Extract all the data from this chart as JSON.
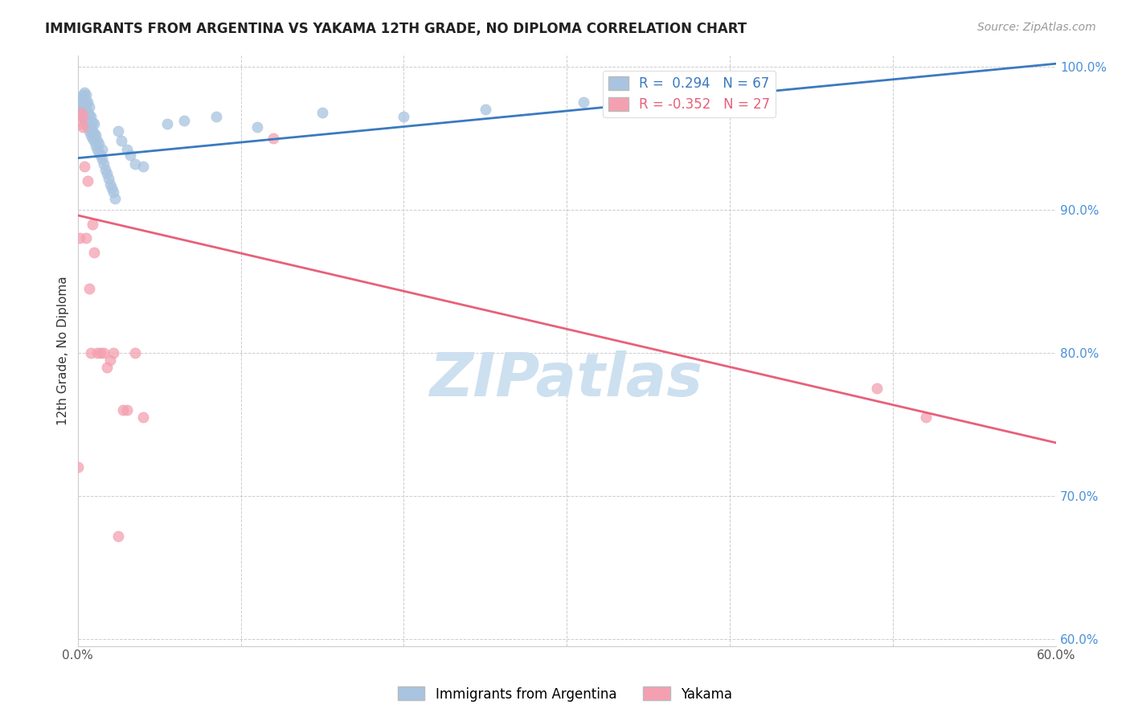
{
  "title": "IMMIGRANTS FROM ARGENTINA VS YAKAMA 12TH GRADE, NO DIPLOMA CORRELATION CHART",
  "source": "Source: ZipAtlas.com",
  "ylabel": "12th Grade, No Diploma",
  "x_min": 0.0,
  "x_max": 0.6,
  "y_min": 0.595,
  "y_max": 1.008,
  "x_ticks": [
    0.0,
    0.1,
    0.2,
    0.3,
    0.4,
    0.5,
    0.6
  ],
  "x_tick_labels": [
    "0.0%",
    "",
    "",
    "",
    "",
    "",
    "60.0%"
  ],
  "y_ticks": [
    0.6,
    0.7,
    0.8,
    0.9,
    1.0
  ],
  "y_tick_labels": [
    "60.0%",
    "70.0%",
    "80.0%",
    "90.0%",
    "100.0%"
  ],
  "blue_R": 0.294,
  "blue_N": 67,
  "pink_R": -0.352,
  "pink_N": 27,
  "blue_color": "#a8c4e0",
  "pink_color": "#f4a0b0",
  "blue_line_color": "#3a7abf",
  "pink_line_color": "#e8607a",
  "watermark": "ZIPatlas",
  "watermark_color": "#cce0f0",
  "legend_label_blue": "Immigrants from Argentina",
  "legend_label_pink": "Yakama",
  "blue_scatter_x": [
    0.001,
    0.001,
    0.002,
    0.002,
    0.002,
    0.003,
    0.003,
    0.003,
    0.003,
    0.004,
    0.004,
    0.004,
    0.004,
    0.004,
    0.005,
    0.005,
    0.005,
    0.005,
    0.005,
    0.006,
    0.006,
    0.006,
    0.006,
    0.007,
    0.007,
    0.007,
    0.007,
    0.008,
    0.008,
    0.008,
    0.009,
    0.009,
    0.009,
    0.01,
    0.01,
    0.01,
    0.011,
    0.011,
    0.012,
    0.012,
    0.013,
    0.013,
    0.014,
    0.015,
    0.015,
    0.016,
    0.017,
    0.018,
    0.019,
    0.02,
    0.021,
    0.022,
    0.023,
    0.025,
    0.027,
    0.03,
    0.032,
    0.035,
    0.04,
    0.055,
    0.065,
    0.085,
    0.11,
    0.15,
    0.2,
    0.25,
    0.31
  ],
  "blue_scatter_y": [
    0.97,
    0.975,
    0.968,
    0.972,
    0.978,
    0.965,
    0.97,
    0.975,
    0.98,
    0.962,
    0.968,
    0.973,
    0.978,
    0.982,
    0.96,
    0.965,
    0.97,
    0.975,
    0.98,
    0.958,
    0.963,
    0.968,
    0.975,
    0.955,
    0.961,
    0.966,
    0.972,
    0.952,
    0.958,
    0.965,
    0.95,
    0.955,
    0.961,
    0.948,
    0.953,
    0.96,
    0.945,
    0.952,
    0.942,
    0.948,
    0.94,
    0.946,
    0.938,
    0.935,
    0.942,
    0.932,
    0.928,
    0.925,
    0.922,
    0.918,
    0.915,
    0.912,
    0.908,
    0.955,
    0.948,
    0.942,
    0.938,
    0.932,
    0.93,
    0.96,
    0.962,
    0.965,
    0.958,
    0.968,
    0.965,
    0.97,
    0.975
  ],
  "pink_scatter_x": [
    0.0,
    0.001,
    0.002,
    0.002,
    0.003,
    0.003,
    0.004,
    0.005,
    0.006,
    0.007,
    0.008,
    0.009,
    0.01,
    0.012,
    0.014,
    0.016,
    0.018,
    0.02,
    0.022,
    0.025,
    0.028,
    0.03,
    0.035,
    0.04,
    0.12,
    0.49,
    0.52
  ],
  "pink_scatter_y": [
    0.72,
    0.88,
    0.96,
    0.968,
    0.958,
    0.965,
    0.93,
    0.88,
    0.92,
    0.845,
    0.8,
    0.89,
    0.87,
    0.8,
    0.8,
    0.8,
    0.79,
    0.795,
    0.8,
    0.672,
    0.76,
    0.76,
    0.8,
    0.755,
    0.95,
    0.775,
    0.755
  ]
}
